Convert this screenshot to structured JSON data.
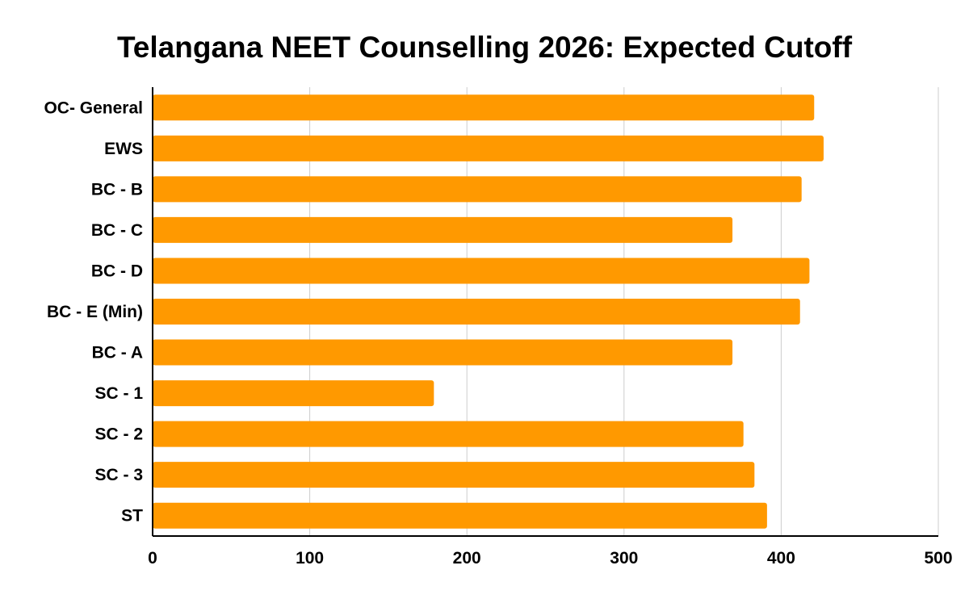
{
  "chart_data": {
    "type": "bar",
    "orientation": "horizontal",
    "title": "Telangana NEET Counselling 2026: Expected Cutoff",
    "xlabel": "",
    "ylabel": "",
    "categories": [
      "OC- General",
      "EWS",
      "BC - B",
      "BC - C",
      "BC - D",
      "BC - E (Min)",
      "BC - A",
      "SC - 1",
      "SC - 2",
      "SC - 3",
      "ST"
    ],
    "values": [
      421,
      427,
      413,
      369,
      418,
      412,
      369,
      179,
      376,
      383,
      391
    ],
    "xlim": [
      0,
      500
    ],
    "xticks": [
      "0",
      "100",
      "200",
      "300",
      "400",
      "500"
    ],
    "grid": true,
    "legend": "none",
    "bar_color": "#FF9900",
    "grid_color": "#CCCCCC",
    "axis_color": "#000000"
  }
}
